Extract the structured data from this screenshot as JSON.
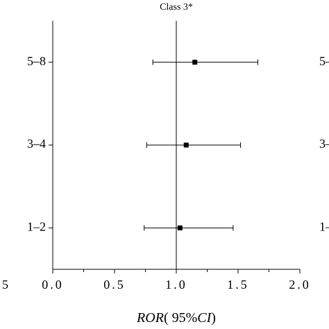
{
  "chart_data": {
    "type": "forest",
    "title": "Class 3*",
    "categories": [
      "5–8",
      "3–4",
      "1–2"
    ],
    "values": [
      1.15,
      1.08,
      1.03
    ],
    "lower": [
      0.81,
      0.76,
      0.74
    ],
    "upper": [
      1.66,
      1.52,
      1.46
    ],
    "color": "#000000",
    "xlim": [
      0,
      2
    ],
    "xticks": [
      {
        "value": 0,
        "label": "0.0"
      },
      {
        "value": 0.5,
        "label": "0.5"
      },
      {
        "value": 1,
        "label": "1.0"
      },
      {
        "value": 1.5,
        "label": "1.5"
      },
      {
        "value": 2,
        "label": "2.0"
      }
    ],
    "xminorticks": [
      0.25,
      0.75,
      1.25,
      1.75
    ],
    "reference": 1,
    "xlabel_parts": [
      "ROR",
      "( 95%",
      "CI",
      ")"
    ],
    "cropped_text": {
      "left": "5",
      "right": [
        "5–",
        "3–",
        "1–"
      ]
    }
  }
}
